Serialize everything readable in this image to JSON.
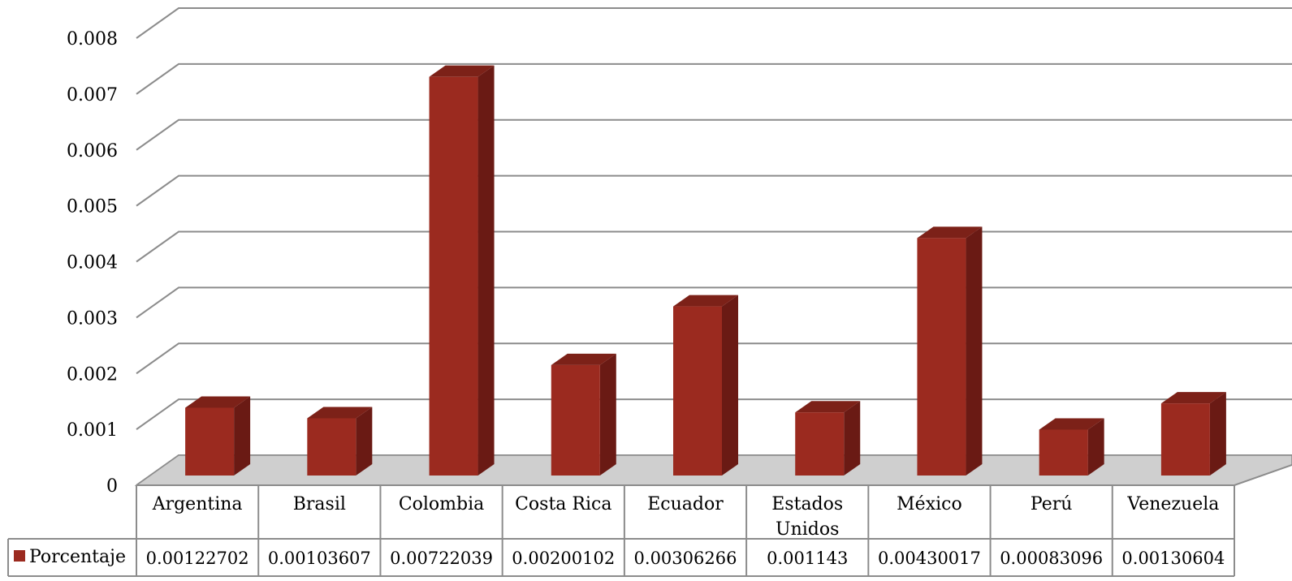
{
  "chart_data": {
    "type": "bar",
    "title": "",
    "xlabel": "",
    "ylabel": "",
    "ylim": [
      0,
      0.008
    ],
    "y_ticks": [
      "0",
      "0.001",
      "0.002",
      "0.003",
      "0.004",
      "0.005",
      "0.006",
      "0.007",
      "0.008"
    ],
    "grid": true,
    "three_d": true,
    "categories": [
      [
        "Argentina"
      ],
      [
        "Brasil"
      ],
      [
        "Colombia"
      ],
      [
        "Costa Rica"
      ],
      [
        "Ecuador"
      ],
      [
        "Estados",
        "Unidos"
      ],
      [
        "México"
      ],
      [
        "Perú"
      ],
      [
        "Venezuela"
      ]
    ],
    "series": [
      {
        "name": "Porcentaje",
        "color": "#9B2A1F",
        "values": [
          0.00122702,
          0.00103607,
          0.00722039,
          0.00200102,
          0.00306266,
          0.001143,
          0.00430017,
          0.00083096,
          0.00130604
        ],
        "value_labels": [
          "0.00122702",
          "0.00103607",
          "0.00722039",
          "0.00200102",
          "0.00306266",
          "0.001143",
          "0.00430017",
          "0.00083096",
          "0.00130604"
        ]
      }
    ],
    "data_table": true,
    "legend_placement": "data-table-left"
  },
  "colors": {
    "bar_front": "#9B2A1F",
    "bar_side": "#6A1A14",
    "bar_top": "#7C2118",
    "grid": "#8C8C8C",
    "floor_shadow": "#CFCFCF"
  }
}
